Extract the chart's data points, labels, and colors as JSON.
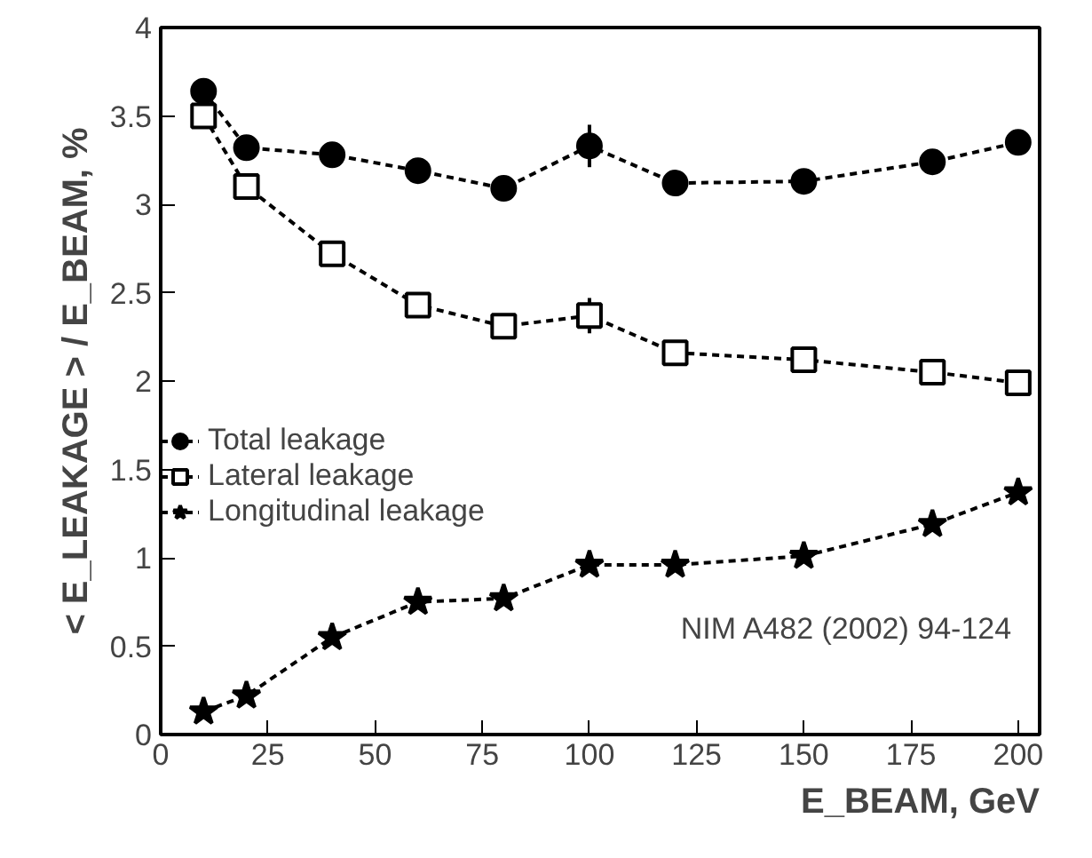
{
  "chart_data": {
    "type": "line",
    "x": [
      10,
      20,
      40,
      60,
      80,
      100,
      120,
      150,
      180,
      200
    ],
    "xlabel": "E_BEAM, GeV",
    "ylabel": "< E_LEAKAGE > / E_BEAM, %",
    "xlim": [
      0,
      205
    ],
    "ylim": [
      0,
      4
    ],
    "xticks": [
      0,
      25,
      50,
      75,
      100,
      125,
      150,
      175,
      200
    ],
    "yticks": [
      0,
      0.5,
      1,
      1.5,
      2,
      2.5,
      3,
      3.5,
      4
    ],
    "grid": false,
    "legend": "left",
    "line_style": "dashed",
    "annotations": [
      "NIM A482 (2002) 94-124"
    ],
    "series": [
      {
        "name": "Total leakage",
        "color": "#000000",
        "marker": "circle",
        "values": [
          3.64,
          3.32,
          3.28,
          3.19,
          3.09,
          3.33,
          3.12,
          3.13,
          3.24,
          3.35
        ],
        "errors": [
          null,
          null,
          null,
          null,
          null,
          0.12,
          null,
          null,
          null,
          null
        ]
      },
      {
        "name": "Lateral leakage",
        "color": "#000000",
        "marker": "square",
        "values": [
          3.5,
          3.1,
          2.72,
          2.43,
          2.31,
          2.37,
          2.16,
          2.12,
          2.05,
          1.99
        ],
        "errors": [
          null,
          null,
          null,
          null,
          null,
          0.1,
          null,
          null,
          null,
          null
        ]
      },
      {
        "name": "Longitudinal leakage",
        "color": "#000000",
        "marker": "star",
        "values": [
          0.13,
          0.22,
          0.55,
          0.75,
          0.77,
          0.96,
          0.96,
          1.01,
          1.19,
          1.37
        ]
      }
    ]
  }
}
